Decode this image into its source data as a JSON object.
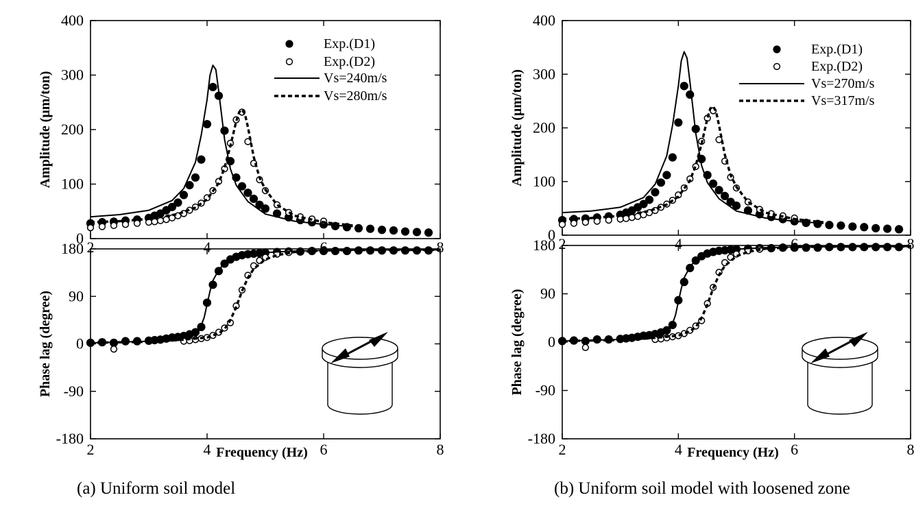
{
  "chart_data": [
    {
      "type": "scatter",
      "caption": "(a)  Uniform soil model",
      "xlabel": "Frequency (Hz)",
      "xlim": [
        2,
        8
      ],
      "xticks": [
        "2",
        "4",
        "6",
        "8"
      ],
      "amplitude": {
        "ylabel": "Amplitude (μm/ton)",
        "ylim": [
          0,
          400
        ],
        "yticks": [
          "0",
          "100",
          "200",
          "300",
          "400"
        ],
        "legend": [
          "Exp.(D1)",
          "Exp.(D2)",
          "Vs=240m/s",
          "Vs=280m/s"
        ],
        "series": [
          {
            "name": "Exp.(D1)",
            "style": "filled",
            "x": [
              2.0,
              2.2,
              2.4,
              2.6,
              2.8,
              3.0,
              3.1,
              3.2,
              3.3,
              3.4,
              3.5,
              3.6,
              3.7,
              3.8,
              3.9,
              4.0,
              4.1,
              4.2,
              4.3,
              4.4,
              4.5,
              4.6,
              4.7,
              4.8,
              4.9,
              5.0,
              5.2,
              5.4,
              5.6,
              5.8,
              6.0,
              6.2,
              6.4,
              6.6,
              6.8,
              7.0,
              7.2,
              7.4,
              7.6,
              7.8
            ],
            "y": [
              28,
              30,
              31,
              33,
              35,
              38,
              42,
              46,
              52,
              58,
              66,
              80,
              98,
              112,
              145,
              210,
              278,
              262,
              198,
              142,
              112,
              96,
              84,
              73,
              62,
              55,
              46,
              39,
              34,
              30,
              26,
              23,
              21,
              19,
              18,
              16,
              15,
              13,
              12,
              11
            ]
          },
          {
            "name": "Exp.(D2)",
            "style": "open",
            "x": [
              2.0,
              2.2,
              2.4,
              2.6,
              2.8,
              3.0,
              3.1,
              3.2,
              3.3,
              3.4,
              3.5,
              3.6,
              3.7,
              3.8,
              3.9,
              4.0,
              4.1,
              4.2,
              4.3,
              4.4,
              4.5,
              4.6,
              4.7,
              4.8,
              4.9,
              5.0,
              5.2,
              5.4,
              5.6,
              5.8,
              6.0
            ],
            "y": [
              20,
              22,
              24,
              26,
              28,
              30,
              31,
              33,
              35,
              38,
              42,
              46,
              52,
              58,
              65,
              75,
              88,
              105,
              128,
              175,
              218,
              232,
              178,
              138,
              108,
              88,
              62,
              48,
              40,
              36,
              32
            ]
          },
          {
            "name": "Vs=240m/s",
            "style": "solid",
            "x": [
              2.0,
              2.5,
              3.0,
              3.4,
              3.6,
              3.8,
              3.9,
              4.0,
              4.05,
              4.1,
              4.15,
              4.2,
              4.3,
              4.4,
              4.5,
              4.7,
              5.0,
              5.5,
              6.0,
              6.5
            ],
            "y": [
              40,
              44,
              52,
              70,
              92,
              140,
              190,
              255,
              300,
              318,
              310,
              270,
              182,
              128,
              98,
              68,
              45,
              32,
              26,
              22
            ]
          },
          {
            "name": "Vs=280m/s",
            "style": "dashed",
            "x": [
              2.0,
              2.5,
              3.0,
              3.5,
              3.8,
              4.0,
              4.2,
              4.3,
              4.4,
              4.5,
              4.55,
              4.6,
              4.65,
              4.7,
              4.8,
              4.9,
              5.0,
              5.2,
              5.5,
              6.0,
              6.5
            ],
            "y": [
              30,
              32,
              36,
              45,
              57,
              72,
              102,
              130,
              170,
              215,
              232,
              237,
              228,
              205,
              150,
              112,
              90,
              62,
              42,
              30,
              24
            ]
          }
        ]
      },
      "phase": {
        "ylabel": "Phase lag (degree)",
        "ylim": [
          -180,
          180
        ],
        "yticks": [
          "-180",
          "-90",
          "0",
          "90",
          "180"
        ],
        "series": [
          {
            "name": "Exp.(D1)",
            "style": "filled",
            "x": [
              2.0,
              2.2,
              2.4,
              2.6,
              2.8,
              3.0,
              3.1,
              3.2,
              3.3,
              3.4,
              3.5,
              3.6,
              3.7,
              3.8,
              3.9,
              4.0,
              4.1,
              4.2,
              4.3,
              4.4,
              4.5,
              4.6,
              4.7,
              4.8,
              4.9,
              5.0,
              5.2,
              5.4,
              5.6,
              5.8,
              6.0,
              6.2,
              6.4,
              6.6,
              6.8,
              7.0,
              7.2,
              7.4,
              7.6,
              7.8
            ],
            "y": [
              2,
              3,
              2,
              5,
              5,
              6,
              7,
              8,
              10,
              12,
              13,
              15,
              18,
              22,
              32,
              78,
              112,
              138,
              152,
              160,
              165,
              168,
              170,
              171,
              172,
              173,
              174,
              175,
              175,
              176,
              176,
              176,
              176,
              177,
              177,
              177,
              177,
              177,
              177,
              177
            ]
          },
          {
            "name": "Exp.(D2)",
            "style": "open",
            "x": [
              2.4,
              3.6,
              3.7,
              3.8,
              3.9,
              4.0,
              4.1,
              4.2,
              4.3,
              4.4,
              4.5,
              4.6,
              4.7,
              4.8,
              4.9,
              5.0,
              5.2,
              5.4
            ],
            "y": [
              -10,
              5,
              6,
              8,
              10,
              12,
              16,
              22,
              30,
              40,
              72,
              102,
              130,
              148,
              158,
              164,
              170,
              173
            ]
          },
          {
            "name": "Vs=240m/s",
            "style": "solid",
            "x": [
              2.0,
              3.0,
              3.5,
              3.8,
              3.9,
              3.95,
              4.0,
              4.05,
              4.1,
              4.2,
              4.3,
              4.5,
              4.7,
              5.0,
              5.5,
              6.0,
              7.0,
              8.0
            ],
            "y": [
              2,
              5,
              10,
              20,
              35,
              50,
              75,
              100,
              120,
              140,
              153,
              164,
              169,
              173,
              176,
              177,
              178,
              178
            ]
          },
          {
            "name": "Vs=280m/s",
            "style": "dashed",
            "x": [
              2.0,
              3.0,
              3.5,
              4.0,
              4.2,
              4.3,
              4.4,
              4.5,
              4.55,
              4.6,
              4.7,
              4.8,
              5.0,
              5.2,
              5.5,
              6.0,
              7.0,
              8.0
            ],
            "y": [
              2,
              4,
              7,
              12,
              20,
              28,
              45,
              70,
              85,
              100,
              125,
              142,
              160,
              168,
              174,
              177,
              178,
              178
            ]
          }
        ]
      }
    },
    {
      "type": "scatter",
      "caption": "(b)  Uniform soil model with loosened zone",
      "xlabel": "Frequency (Hz)",
      "xlim": [
        2,
        8
      ],
      "xticks": [
        "2",
        "4",
        "6",
        "8"
      ],
      "amplitude": {
        "ylabel": "Amplitude (μm/ton)",
        "ylim": [
          0,
          400
        ],
        "yticks": [
          "0",
          "100",
          "200",
          "300",
          "400"
        ],
        "legend": [
          "Exp.(D1)",
          "Exp.(D2)",
          "Vs=270m/s",
          "Vs=317m/s"
        ],
        "series": [
          {
            "name": "Exp.(D1)",
            "style": "filled",
            "x": [
              2.0,
              2.2,
              2.4,
              2.6,
              2.8,
              3.0,
              3.1,
              3.2,
              3.3,
              3.4,
              3.5,
              3.6,
              3.7,
              3.8,
              3.9,
              4.0,
              4.1,
              4.2,
              4.3,
              4.4,
              4.5,
              4.6,
              4.7,
              4.8,
              4.9,
              5.0,
              5.2,
              5.4,
              5.6,
              5.8,
              6.0,
              6.2,
              6.4,
              6.6,
              6.8,
              7.0,
              7.2,
              7.4,
              7.6,
              7.8
            ],
            "y": [
              28,
              30,
              31,
              33,
              35,
              38,
              42,
              46,
              52,
              58,
              66,
              80,
              98,
              112,
              145,
              210,
              278,
              262,
              198,
              142,
              112,
              96,
              84,
              73,
              62,
              55,
              46,
              39,
              34,
              30,
              26,
              23,
              21,
              19,
              18,
              16,
              15,
              13,
              12,
              11
            ]
          },
          {
            "name": "Exp.(D2)",
            "style": "open",
            "x": [
              2.0,
              2.2,
              2.4,
              2.6,
              2.8,
              3.0,
              3.1,
              3.2,
              3.3,
              3.4,
              3.5,
              3.6,
              3.7,
              3.8,
              3.9,
              4.0,
              4.1,
              4.2,
              4.3,
              4.4,
              4.5,
              4.6,
              4.7,
              4.8,
              4.9,
              5.0,
              5.2,
              5.4,
              5.6,
              5.8,
              6.0
            ],
            "y": [
              20,
              22,
              24,
              26,
              28,
              30,
              31,
              33,
              35,
              38,
              42,
              46,
              52,
              58,
              65,
              75,
              88,
              105,
              128,
              175,
              218,
              232,
              178,
              138,
              108,
              88,
              62,
              48,
              40,
              36,
              32
            ]
          },
          {
            "name": "Vs=270m/s",
            "style": "solid",
            "x": [
              2.0,
              2.5,
              3.0,
              3.4,
              3.6,
              3.8,
              3.9,
              4.0,
              4.05,
              4.1,
              4.15,
              4.2,
              4.3,
              4.4,
              4.5,
              4.7,
              5.0,
              5.5,
              6.0,
              6.5
            ],
            "y": [
              42,
              45,
              52,
              70,
              95,
              148,
              205,
              278,
              325,
              342,
              330,
              285,
              190,
              130,
              98,
              68,
              45,
              32,
              26,
              22
            ]
          },
          {
            "name": "Vs=317m/s",
            "style": "dashed",
            "x": [
              2.0,
              2.5,
              3.0,
              3.5,
              3.8,
              4.0,
              4.2,
              4.3,
              4.4,
              4.5,
              4.55,
              4.6,
              4.65,
              4.7,
              4.8,
              4.9,
              5.0,
              5.2,
              5.5,
              6.0,
              6.5
            ],
            "y": [
              30,
              32,
              36,
              45,
              57,
              72,
              102,
              130,
              170,
              218,
              236,
              240,
              230,
              205,
              150,
              112,
              90,
              62,
              42,
              30,
              24
            ]
          }
        ]
      },
      "phase": {
        "ylabel": "Phase lag (degree)",
        "ylim": [
          -180,
          180
        ],
        "yticks": [
          "-180",
          "-90",
          "0",
          "90",
          "180"
        ],
        "series": [
          {
            "name": "Exp.(D1)",
            "style": "filled",
            "x": [
              2.0,
              2.2,
              2.4,
              2.6,
              2.8,
              3.0,
              3.1,
              3.2,
              3.3,
              3.4,
              3.5,
              3.6,
              3.7,
              3.8,
              3.9,
              4.0,
              4.1,
              4.2,
              4.3,
              4.4,
              4.5,
              4.6,
              4.7,
              4.8,
              4.9,
              5.0,
              5.2,
              5.4,
              5.6,
              5.8,
              6.0,
              6.2,
              6.4,
              6.6,
              6.8,
              7.0,
              7.2,
              7.4,
              7.6,
              7.8
            ],
            "y": [
              2,
              3,
              2,
              5,
              5,
              6,
              7,
              8,
              10,
              12,
              13,
              15,
              18,
              22,
              32,
              78,
              112,
              138,
              152,
              160,
              165,
              168,
              170,
              171,
              172,
              173,
              174,
              175,
              175,
              176,
              176,
              176,
              176,
              177,
              177,
              177,
              177,
              177,
              177,
              177
            ]
          },
          {
            "name": "Exp.(D2)",
            "style": "open",
            "x": [
              2.4,
              3.6,
              3.7,
              3.8,
              3.9,
              4.0,
              4.1,
              4.2,
              4.3,
              4.4,
              4.5,
              4.6,
              4.7,
              4.8,
              4.9,
              5.0,
              5.2,
              5.4
            ],
            "y": [
              -10,
              5,
              6,
              8,
              10,
              12,
              16,
              22,
              30,
              40,
              72,
              102,
              130,
              148,
              158,
              164,
              170,
              173
            ]
          },
          {
            "name": "Vs=270m/s",
            "style": "solid",
            "x": [
              2.0,
              3.0,
              3.5,
              3.8,
              3.9,
              3.95,
              4.0,
              4.05,
              4.1,
              4.2,
              4.3,
              4.5,
              4.7,
              5.0,
              5.5,
              6.0,
              7.0,
              8.0
            ],
            "y": [
              2,
              5,
              10,
              20,
              35,
              50,
              75,
              100,
              120,
              140,
              153,
              164,
              169,
              173,
              176,
              177,
              178,
              178
            ]
          },
          {
            "name": "Vs=317m/s",
            "style": "dashed",
            "x": [
              2.0,
              3.0,
              3.5,
              4.0,
              4.2,
              4.3,
              4.4,
              4.5,
              4.55,
              4.6,
              4.7,
              4.8,
              5.0,
              5.2,
              5.5,
              6.0,
              7.0,
              8.0
            ],
            "y": [
              2,
              4,
              7,
              12,
              20,
              28,
              45,
              70,
              85,
              100,
              125,
              142,
              160,
              168,
              174,
              177,
              178,
              178
            ]
          }
        ]
      }
    }
  ]
}
